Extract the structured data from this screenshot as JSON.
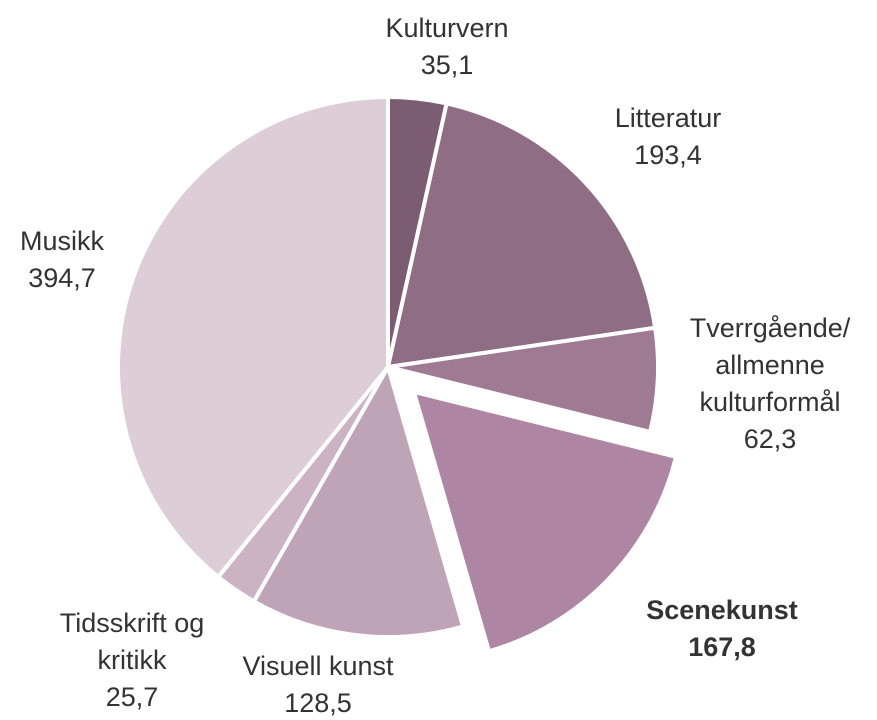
{
  "chart_data": {
    "type": "pie",
    "categories": [
      "Kulturvern",
      "Litteratur",
      "Tverrgående/\nallmenne\nkulturformål",
      "Scenekunst",
      "Visuell kunst",
      "Tidsskrift og\nkritikk",
      "Musikk"
    ],
    "values": [
      35.1,
      193.4,
      62.3,
      167.8,
      128.5,
      25.7,
      394.7
    ],
    "value_labels": [
      "35,1",
      "193,4",
      "62,3",
      "167,8",
      "128,5",
      "25,7",
      "394,7"
    ],
    "colors": [
      "#7b5c73",
      "#8e6d85",
      "#9e7a93",
      "#ae85a3",
      "#bfa3b6",
      "#cbb3c3",
      "#dccdd7"
    ],
    "explode": "Scenekunst"
  }
}
